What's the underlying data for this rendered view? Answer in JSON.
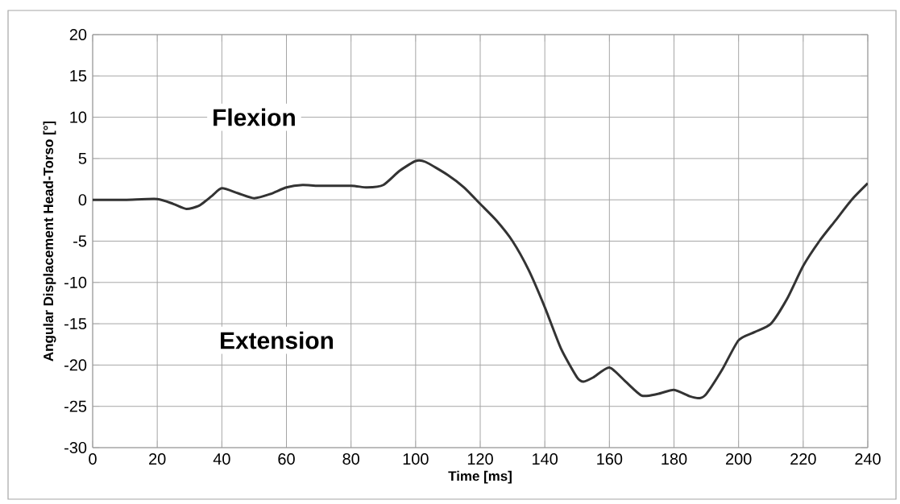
{
  "chart_data": {
    "type": "line",
    "xlabel": "Time [ms]",
    "ylabel": "Angular Displacement Head-Torso [°]",
    "annotations": [
      "Flexion",
      "Extension"
    ],
    "x": [
      0,
      10,
      20,
      25,
      29,
      33,
      37,
      40,
      45,
      50,
      55,
      60,
      65,
      70,
      80,
      85,
      90,
      95,
      100,
      103,
      110,
      115,
      120,
      125,
      130,
      135,
      140,
      145,
      150,
      152,
      155,
      160,
      165,
      170,
      175,
      180,
      185,
      188,
      190,
      195,
      200,
      205,
      210,
      215,
      220,
      225,
      230,
      235,
      240
    ],
    "series": [
      {
        "color": "#333333",
        "values": [
          0,
          0,
          0.1,
          -0.5,
          -1.1,
          -0.7,
          0.5,
          1.4,
          0.8,
          0.2,
          0.7,
          1.5,
          1.8,
          1.7,
          1.7,
          1.5,
          1.8,
          3.5,
          4.7,
          4.6,
          3,
          1.5,
          -0.5,
          -2.5,
          -5,
          -8.5,
          -13,
          -18,
          -21.5,
          -22,
          -21.5,
          -20.3,
          -22,
          -23.7,
          -23.5,
          -23,
          -23.8,
          -24,
          -23.5,
          -20.5,
          -17,
          -16,
          -15,
          -12,
          -8,
          -5,
          -2.5,
          0,
          2
        ]
      }
    ],
    "xlim": [
      0,
      240
    ],
    "ylim": [
      -30,
      20
    ],
    "xticks": [
      0,
      20,
      40,
      60,
      80,
      100,
      120,
      140,
      160,
      180,
      200,
      220,
      240
    ],
    "yticks": [
      -30,
      -25,
      -20,
      -15,
      -10,
      -5,
      0,
      5,
      10,
      15,
      20
    ],
    "grid": true,
    "marker": "none",
    "line_style": "solid"
  }
}
